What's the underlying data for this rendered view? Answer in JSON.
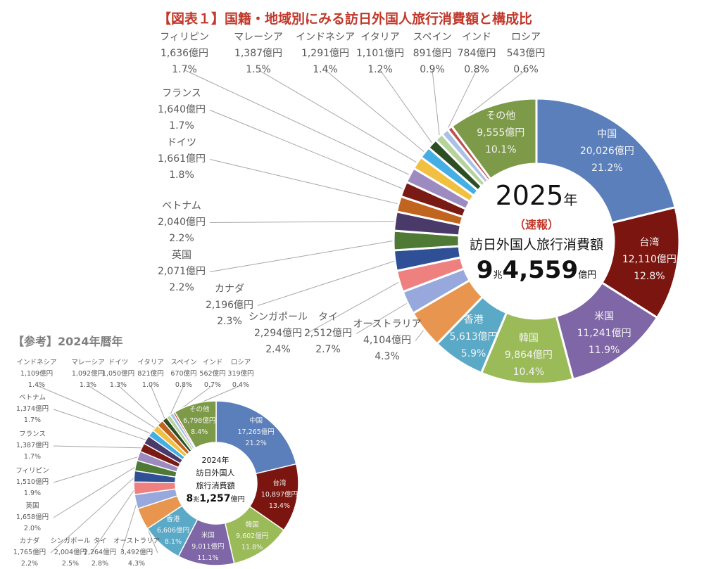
{
  "title": "【図表１】国籍・地域別にみる訪日外国人旅行消費額と構成比",
  "reference_title": "【参考】2024年暦年",
  "chart_data": [
    {
      "type": "pie",
      "style": "donut",
      "year_label": "2025",
      "year_unit": "年",
      "preliminary": "（速報）",
      "center_label": "訪日外国人旅行消費額",
      "total_cho": "9",
      "cho_unit": "兆",
      "total_oku": "4,559",
      "oku_unit": "億円",
      "slices": [
        {
          "label": "中国",
          "value": 20026,
          "value_text": "20,026億円",
          "percent": "21.2%",
          "color": "#5b7fbb"
        },
        {
          "label": "台湾",
          "value": 12110,
          "value_text": "12,110億円",
          "percent": "12.8%",
          "color": "#7a1510"
        },
        {
          "label": "米国",
          "value": 11241,
          "value_text": "11,241億円",
          "percent": "11.9%",
          "color": "#7f66a6"
        },
        {
          "label": "韓国",
          "value": 9864,
          "value_text": "9,864億円",
          "percent": "10.4%",
          "color": "#9bbb59"
        },
        {
          "label": "香港",
          "value": 5613,
          "value_text": "5,613億円",
          "percent": "5.9%",
          "color": "#5aa9c7"
        },
        {
          "label": "オーストラリア",
          "value": 4104,
          "value_text": "4,104億円",
          "percent": "4.3%",
          "color": "#e8964f"
        },
        {
          "label": "タイ",
          "value": 2512,
          "value_text": "2,512億円",
          "percent": "2.7%",
          "color": "#97a9dc"
        },
        {
          "label": "シンガポール",
          "value": 2294,
          "value_text": "2,294億円",
          "percent": "2.4%",
          "color": "#ee8080"
        },
        {
          "label": "カナダ",
          "value": 2196,
          "value_text": "2,196億円",
          "percent": "2.3%",
          "color": "#2f4f96"
        },
        {
          "label": "英国",
          "value": 2071,
          "value_text": "2,071億円",
          "percent": "2.2%",
          "color": "#4f7a35"
        },
        {
          "label": "ベトナム",
          "value": 2040,
          "value_text": "2,040億円",
          "percent": "2.2%",
          "color": "#4a3a6a"
        },
        {
          "label": "ドイツ",
          "value": 1661,
          "value_text": "1,661億円",
          "percent": "1.8%",
          "color": "#c0641f"
        },
        {
          "label": "フランス",
          "value": 1640,
          "value_text": "1,640億円",
          "percent": "1.7%",
          "color": "#7a1a14"
        },
        {
          "label": "フィリピン",
          "value": 1636,
          "value_text": "1,636億円",
          "percent": "1.7%",
          "color": "#9d8bc0"
        },
        {
          "label": "マレーシア",
          "value": 1387,
          "value_text": "1,387億円",
          "percent": "1.5%",
          "color": "#f2c040"
        },
        {
          "label": "インドネシア",
          "value": 1291,
          "value_text": "1,291億円",
          "percent": "1.4%",
          "color": "#45aee5"
        },
        {
          "label": "イタリア",
          "value": 1101,
          "value_text": "1,101億円",
          "percent": "1.2%",
          "color": "#2d4e22"
        },
        {
          "label": "スペイン",
          "value": 891,
          "value_text": "891億円",
          "percent": "0.9%",
          "color": "#b5d39a"
        },
        {
          "label": "インド",
          "value": 784,
          "value_text": "784億円",
          "percent": "0.8%",
          "color": "#a9c1e6"
        },
        {
          "label": "ロシア",
          "value": 543,
          "value_text": "543億円",
          "percent": "0.6%",
          "color": "#c05050"
        },
        {
          "label": "その他",
          "value": 9555,
          "value_text": "9,555億円",
          "percent": "10.1%",
          "color": "#7d9a48"
        }
      ]
    },
    {
      "type": "pie",
      "style": "donut",
      "year_label": "2024年",
      "center_label_1": "訪日外国人",
      "center_label_2": "旅行消費額",
      "total_cho": "8",
      "cho_unit": "兆",
      "total_oku": "1,257",
      "oku_unit": "億円",
      "slices": [
        {
          "label": "中国",
          "value": 17265,
          "value_text": "17,265億円",
          "percent": "21.2%",
          "color": "#5b7fbb"
        },
        {
          "label": "台湾",
          "value": 10897,
          "value_text": "10,897億円",
          "percent": "13.4%",
          "color": "#7a1510"
        },
        {
          "label": "韓国",
          "value": 9602,
          "value_text": "9,602億円",
          "percent": "11.8%",
          "color": "#9bbb59"
        },
        {
          "label": "米国",
          "value": 9011,
          "value_text": "9,011億円",
          "percent": "11.1%",
          "color": "#7f66a6"
        },
        {
          "label": "香港",
          "value": 6606,
          "value_text": "6,606億円",
          "percent": "8.1%",
          "color": "#5aa9c7"
        },
        {
          "label": "オーストラリア",
          "value": 3492,
          "value_text": "3,492億円",
          "percent": "4.3%",
          "color": "#e8964f"
        },
        {
          "label": "タイ",
          "value": 2264,
          "value_text": "2,264億円",
          "percent": "2.8%",
          "color": "#97a9dc"
        },
        {
          "label": "シンガポール",
          "value": 2004,
          "value_text": "2,004億円",
          "percent": "2.5%",
          "color": "#ee8080"
        },
        {
          "label": "カナダ",
          "value": 1765,
          "value_text": "1,765億円",
          "percent": "2.2%",
          "color": "#2f4f96"
        },
        {
          "label": "英国",
          "value": 1658,
          "value_text": "1,658億円",
          "percent": "2.0%",
          "color": "#4f7a35"
        },
        {
          "label": "フィリピン",
          "value": 1510,
          "value_text": "1,510億円",
          "percent": "1.9%",
          "color": "#9d8bc0"
        },
        {
          "label": "フランス",
          "value": 1387,
          "value_text": "1,387億円",
          "percent": "1.7%",
          "color": "#7a1a14"
        },
        {
          "label": "ベトナム",
          "value": 1374,
          "value_text": "1,374億円",
          "percent": "1.7%",
          "color": "#4a3a6a"
        },
        {
          "label": "インドネシア",
          "value": 1109,
          "value_text": "1,109億円",
          "percent": "1.4%",
          "color": "#45aee5"
        },
        {
          "label": "マレーシア",
          "value": 1092,
          "value_text": "1,092億円",
          "percent": "1.3%",
          "color": "#f2c040"
        },
        {
          "label": "ドイツ",
          "value": 1050,
          "value_text": "1,050億円",
          "percent": "1.3%",
          "color": "#c0641f"
        },
        {
          "label": "イタリア",
          "value": 821,
          "value_text": "821億円",
          "percent": "1.0%",
          "color": "#2d4e22"
        },
        {
          "label": "スペイン",
          "value": 670,
          "value_text": "670億円",
          "percent": "0.8%",
          "color": "#b5d39a"
        },
        {
          "label": "インド",
          "value": 562,
          "value_text": "562億円",
          "percent": "0.7%",
          "color": "#a9c1e6"
        },
        {
          "label": "ロシア",
          "value": 319,
          "value_text": "319億円",
          "percent": "0.4%",
          "color": "#c05050"
        },
        {
          "label": "その他",
          "value": 6798,
          "value_text": "6,798億円",
          "percent": "8.4%",
          "color": "#7d9a48"
        }
      ]
    }
  ]
}
